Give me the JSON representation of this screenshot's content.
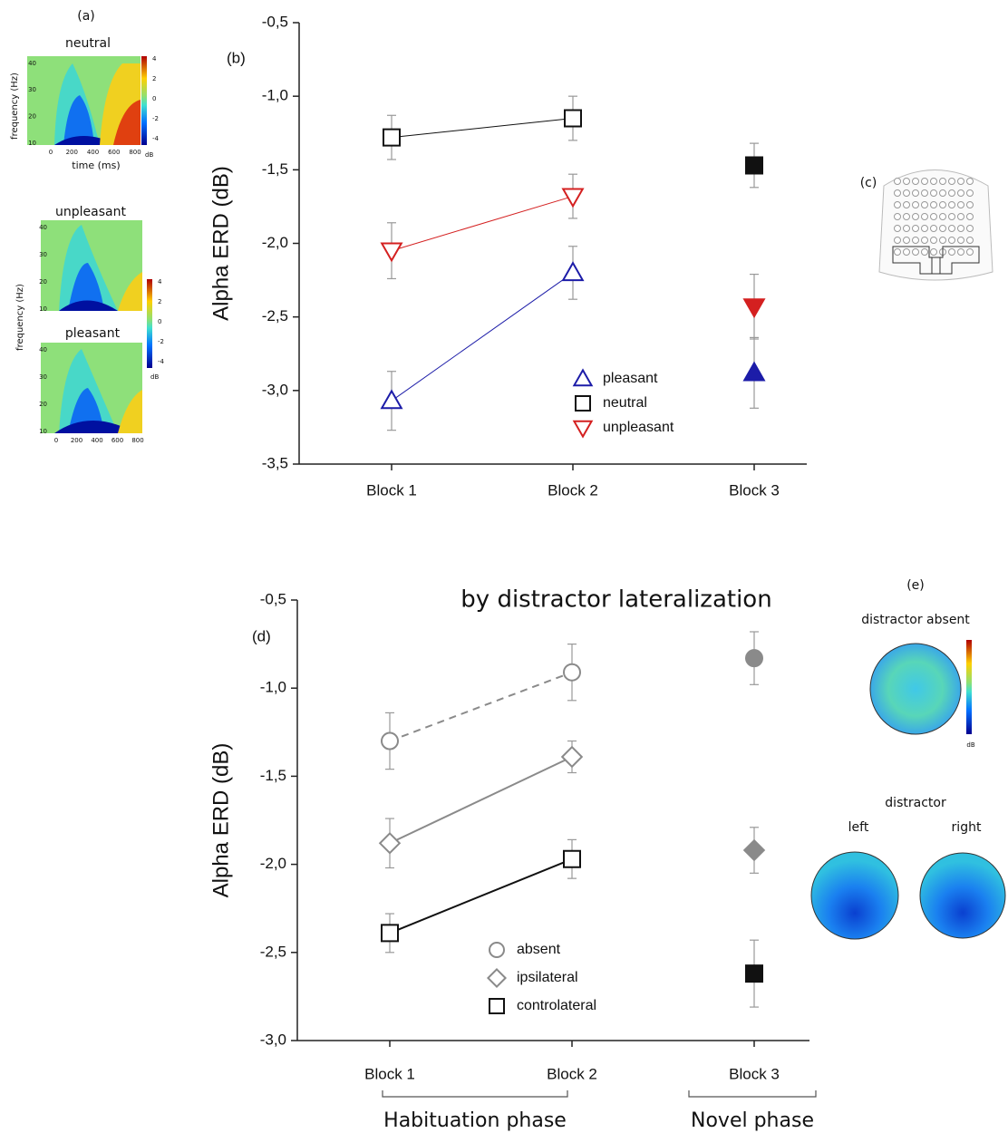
{
  "panels": {
    "a": {
      "label": "(a)",
      "titles": [
        "neutral",
        "unpleasant",
        "pleasant"
      ],
      "ylabel": "frequency (Hz)",
      "xlabel": "time (ms)",
      "unit": "dB",
      "xticks": [
        0,
        200,
        400,
        600,
        800
      ],
      "yticks": [
        10,
        20,
        30,
        40
      ],
      "cbar": [
        4,
        2,
        0,
        -2,
        -4
      ]
    },
    "c": {
      "label": "(c)"
    },
    "e": {
      "label": "(e)",
      "absent": "distractor absent",
      "distractor": "distractor",
      "left": "left",
      "right": "right",
      "unit": "dB"
    }
  },
  "chart_data": [
    {
      "type": "line",
      "panel_label": "(b)",
      "y_label": "Alpha ERD (dB)",
      "categories": [
        "Block 1",
        "Block 2",
        "Block 3"
      ],
      "ylim": [
        -3.5,
        -0.5
      ],
      "yticks": [
        {
          "value": -0.5,
          "label": "-0,5"
        },
        {
          "value": -1.0,
          "label": "-1,0"
        },
        {
          "value": -1.5,
          "label": "-1,5"
        },
        {
          "value": -2.0,
          "label": "-2,0"
        },
        {
          "value": -2.5,
          "label": "-2,5"
        },
        {
          "value": -3.0,
          "label": "-3,0"
        },
        {
          "value": -3.5,
          "label": "-3,5"
        }
      ],
      "legend": "lower center",
      "series": [
        {
          "name": "pleasant",
          "color": "#1c1ca8",
          "marker": "triangle-up",
          "values": [
            -3.07,
            -2.2,
            -2.88
          ],
          "errors": [
            0.2,
            0.18,
            0.24
          ],
          "filled": [
            false,
            false,
            true
          ]
        },
        {
          "name": "neutral",
          "color": "#111111",
          "marker": "square",
          "values": [
            -1.28,
            -1.15,
            -1.47
          ],
          "errors": [
            0.15,
            0.15,
            0.15
          ],
          "filled": [
            false,
            false,
            true
          ]
        },
        {
          "name": "unpleasant",
          "color": "#d42020",
          "marker": "triangle-down",
          "values": [
            -2.05,
            -1.68,
            -2.43
          ],
          "errors": [
            0.19,
            0.15,
            0.22
          ],
          "filled": [
            false,
            false,
            true
          ]
        }
      ]
    },
    {
      "type": "line",
      "panel_label": "(d)",
      "title": "by distractor lateralization",
      "y_label": "Alpha ERD (dB)",
      "categories": [
        "Block 1",
        "Block 2",
        "Block 3"
      ],
      "ylim": [
        -3.0,
        -0.5
      ],
      "yticks": [
        {
          "value": -0.5,
          "label": "-0,5"
        },
        {
          "value": -1.0,
          "label": "-1,0"
        },
        {
          "value": -1.5,
          "label": "-1,5"
        },
        {
          "value": -2.0,
          "label": "-2,0"
        },
        {
          "value": -2.5,
          "label": "-2,5"
        },
        {
          "value": -3.0,
          "label": "-3,0"
        }
      ],
      "legend": "lower center",
      "groups": [
        {
          "label": "Habituation phase",
          "categories": [
            0,
            1
          ]
        },
        {
          "label": "Novel phase",
          "categories": [
            2
          ]
        }
      ],
      "series": [
        {
          "name": "absent",
          "color": "#8a8a8a",
          "marker": "circle",
          "dashed": true,
          "values": [
            -1.3,
            -0.91,
            -0.83
          ],
          "errors": [
            0.16,
            0.16,
            0.15
          ],
          "filled": [
            false,
            false,
            true
          ]
        },
        {
          "name": "ipsilateral",
          "color": "#8a8a8a",
          "marker": "diamond",
          "values": [
            -1.88,
            -1.39,
            -1.92
          ],
          "errors": [
            0.14,
            0.09,
            0.13
          ],
          "filled": [
            false,
            false,
            true
          ]
        },
        {
          "name": "controlateral",
          "color": "#111111",
          "marker": "square",
          "values": [
            -2.39,
            -1.97,
            -2.62
          ],
          "errors": [
            0.11,
            0.11,
            0.19
          ],
          "filled": [
            false,
            false,
            true
          ]
        }
      ]
    }
  ]
}
